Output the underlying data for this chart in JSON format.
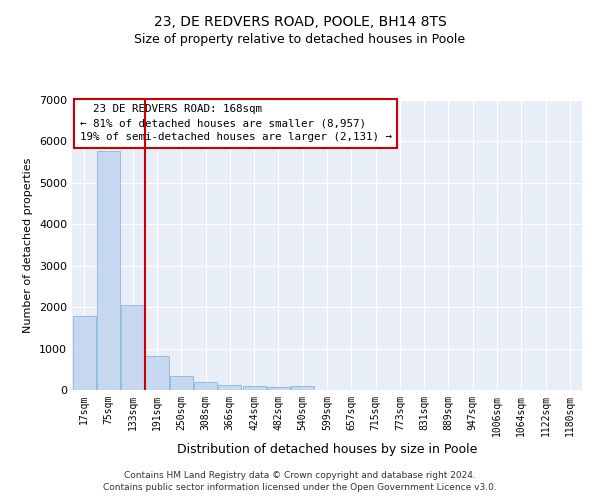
{
  "title": "23, DE REDVERS ROAD, POOLE, BH14 8TS",
  "subtitle": "Size of property relative to detached houses in Poole",
  "xlabel": "Distribution of detached houses by size in Poole",
  "ylabel": "Number of detached properties",
  "bar_color": "#c5d8f0",
  "bar_edge_color": "#7aadd4",
  "bar_heights": [
    1780,
    5780,
    2060,
    820,
    340,
    190,
    110,
    100,
    80,
    100,
    0,
    0,
    0,
    0,
    0,
    0,
    0,
    0,
    0,
    0,
    0
  ],
  "bin_labels": [
    "17sqm",
    "75sqm",
    "133sqm",
    "191sqm",
    "250sqm",
    "308sqm",
    "366sqm",
    "424sqm",
    "482sqm",
    "540sqm",
    "599sqm",
    "657sqm",
    "715sqm",
    "773sqm",
    "831sqm",
    "889sqm",
    "947sqm",
    "1006sqm",
    "1064sqm",
    "1122sqm",
    "1180sqm"
  ],
  "ylim": [
    0,
    7000
  ],
  "yticks": [
    0,
    1000,
    2000,
    3000,
    4000,
    5000,
    6000,
    7000
  ],
  "red_line_bin": 2,
  "annotation_text": "  23 DE REDVERS ROAD: 168sqm\n← 81% of detached houses are smaller (8,957)\n19% of semi-detached houses are larger (2,131) →",
  "annotation_box_color": "#ffffff",
  "annotation_box_edge_color": "#cc0000",
  "footer_line1": "Contains HM Land Registry data © Crown copyright and database right 2024.",
  "footer_line2": "Contains public sector information licensed under the Open Government Licence v3.0.",
  "background_color": "#e8eef8",
  "grid_color": "#ffffff",
  "fig_bg_color": "#ffffff",
  "title_fontsize": 10,
  "subtitle_fontsize": 9
}
